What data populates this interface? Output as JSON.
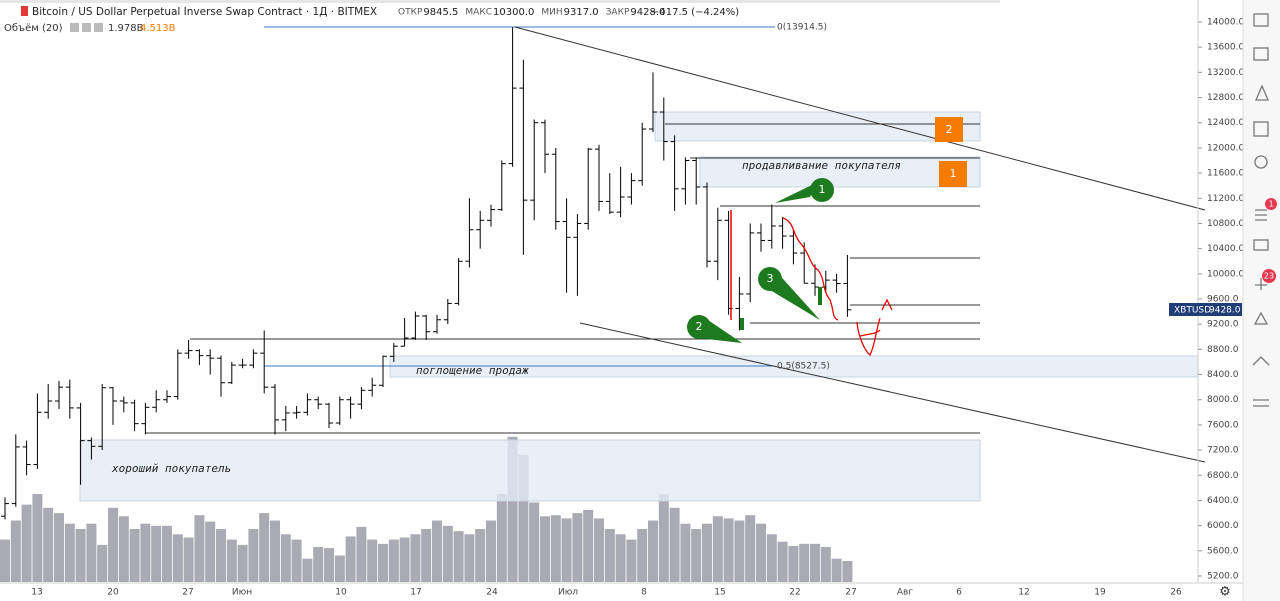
{
  "header": {
    "title": "Bitcoin / US Dollar Perpetual Inverse Swap Contract · 1Д · BITMEX",
    "ohlc": [
      {
        "label": "ОТКР",
        "value": "9845.5"
      },
      {
        "label": "МАКС",
        "value": "10300.0"
      },
      {
        "label": "МИН",
        "value": "9317.0"
      },
      {
        "label": "ЗАКР",
        "value": "9428.0"
      }
    ],
    "change": "−417.5 (−4.24%)",
    "volume_label": "Объём (20)",
    "volume_value": "1.978B",
    "volume_ma": "4.513B"
  },
  "price_tag": {
    "symbol": "XBTUSD",
    "value": "9428.0"
  },
  "annotations": {
    "fib_top": "0(13914.5)",
    "fib_mid": "0.5(8527.5)",
    "zone_seller": "продавливание покупателя",
    "zone_absorb": "поглощение продаж",
    "zone_buyer": "хороший покупатель",
    "box_1": "1",
    "box_2": "2",
    "marker_1": "1",
    "marker_2": "2",
    "marker_3": "3"
  },
  "toolbar": {
    "badge_alerts": "1",
    "badge_ideas": "23"
  },
  "chart_data": {
    "type": "ohlc",
    "x_labels": [
      "13",
      "20",
      "27",
      "Июн",
      "10",
      "17",
      "24",
      "Июл",
      "8",
      "15",
      "22",
      "27",
      "Авг",
      "6",
      "12",
      "19",
      "26"
    ],
    "ylim": [
      5200,
      14000
    ],
    "yticks": [
      {
        "value": 14000,
        "label": "14000.0"
      },
      {
        "value": 13600,
        "label": "13600.0"
      },
      {
        "value": 13200,
        "label": "13200.0"
      },
      {
        "value": 12800,
        "label": "12800.0"
      },
      {
        "value": 12400,
        "label": "12400.0"
      },
      {
        "value": 12000,
        "label": "12000.0"
      },
      {
        "value": 11600,
        "label": "11600.0"
      },
      {
        "value": 11200,
        "label": "11200.0"
      },
      {
        "value": 10800,
        "label": "10800.0"
      },
      {
        "value": 10400,
        "label": "10400.0"
      },
      {
        "value": 10000,
        "label": "10000.0"
      },
      {
        "value": 9600,
        "label": "9600.0"
      },
      {
        "value": 9200,
        "label": "9200.0"
      },
      {
        "value": 8800,
        "label": "8800.0"
      },
      {
        "value": 8400,
        "label": "8400.0"
      },
      {
        "value": 8000,
        "label": "8000.0"
      },
      {
        "value": 7600,
        "label": "7600.0"
      },
      {
        "value": 7200,
        "label": "7200.0"
      },
      {
        "value": 6800,
        "label": "6800.0"
      },
      {
        "value": 6400,
        "label": "6400.0"
      },
      {
        "value": 6000,
        "label": "6000.0"
      },
      {
        "value": 5600,
        "label": "5600.0"
      },
      {
        "value": 5200,
        "label": "5200.0"
      }
    ],
    "bars": [
      [
        6150,
        6450,
        6100,
        6350
      ],
      [
        6350,
        7450,
        6300,
        7250
      ],
      [
        7250,
        7350,
        6800,
        6970
      ],
      [
        6970,
        8100,
        6900,
        7800
      ],
      [
        7800,
        8250,
        7700,
        7980
      ],
      [
        7980,
        8300,
        7850,
        8200
      ],
      [
        8200,
        8320,
        7700,
        7870
      ],
      [
        7870,
        7950,
        6650,
        7350
      ],
      [
        7350,
        7400,
        7050,
        7260
      ],
      [
        7260,
        8250,
        7200,
        8190
      ],
      [
        8190,
        8200,
        7600,
        7980
      ],
      [
        7980,
        8050,
        7800,
        7950
      ],
      [
        7950,
        8000,
        7500,
        7620
      ],
      [
        7620,
        7950,
        7450,
        7880
      ],
      [
        7880,
        8150,
        7800,
        8000
      ],
      [
        8000,
        8150,
        7950,
        8050
      ],
      [
        8050,
        8800,
        8000,
        8740
      ],
      [
        8740,
        8950,
        8650,
        8780
      ],
      [
        8780,
        8800,
        8550,
        8700
      ],
      [
        8700,
        8800,
        8400,
        8660
      ],
      [
        8660,
        8700,
        8050,
        8270
      ],
      [
        8270,
        8600,
        8250,
        8550
      ],
      [
        8550,
        8650,
        8500,
        8550
      ],
      [
        8550,
        8800,
        8500,
        8740
      ],
      [
        8740,
        9100,
        8100,
        8200
      ],
      [
        8200,
        8250,
        7450,
        7680
      ],
      [
        7680,
        7900,
        7500,
        7790
      ],
      [
        7790,
        7900,
        7700,
        7800
      ],
      [
        7800,
        8100,
        7750,
        8000
      ],
      [
        8000,
        8050,
        7850,
        7930
      ],
      [
        7930,
        7950,
        7550,
        7630
      ],
      [
        7630,
        8050,
        7600,
        8000
      ],
      [
        8000,
        8050,
        7700,
        7930
      ],
      [
        7930,
        8200,
        7850,
        8150
      ],
      [
        8150,
        8350,
        8050,
        8230
      ],
      [
        8230,
        8700,
        8200,
        8690
      ],
      [
        8690,
        8900,
        8600,
        8850
      ],
      [
        8850,
        9300,
        8850,
        8980
      ],
      [
        8980,
        9400,
        8950,
        9330
      ],
      [
        9330,
        9350,
        8950,
        9080
      ],
      [
        9080,
        9350,
        9050,
        9270
      ],
      [
        9270,
        9600,
        9200,
        9530
      ],
      [
        9530,
        10250,
        9500,
        10200
      ],
      [
        10200,
        11200,
        10100,
        10700
      ],
      [
        10700,
        11000,
        10400,
        10850
      ],
      [
        10850,
        11100,
        10750,
        11020
      ],
      [
        11020,
        11800,
        11000,
        11750
      ],
      [
        11750,
        13914.5,
        11700,
        12950
      ],
      [
        12950,
        13400,
        10300,
        11170
      ],
      [
        11170,
        12450,
        10850,
        12400
      ],
      [
        12400,
        12450,
        11600,
        11900
      ],
      [
        11900,
        12000,
        10700,
        10830
      ],
      [
        10830,
        11200,
        9700,
        10580
      ],
      [
        10580,
        10950,
        9650,
        10800
      ],
      [
        10800,
        12000,
        10700,
        11980
      ],
      [
        11980,
        12050,
        11000,
        11150
      ],
      [
        11150,
        11600,
        10950,
        10980
      ],
      [
        10980,
        11700,
        10900,
        11220
      ],
      [
        11220,
        11600,
        11100,
        11480
      ],
      [
        11480,
        12400,
        11400,
        12300
      ],
      [
        12300,
        13200,
        12250,
        12570
      ],
      [
        12570,
        12800,
        11800,
        12100
      ],
      [
        12100,
        12200,
        11000,
        11350
      ],
      [
        11350,
        11850,
        11100,
        11800
      ],
      [
        11800,
        11850,
        11100,
        11380
      ],
      [
        11380,
        11450,
        10100,
        10200
      ],
      [
        10200,
        11050,
        9900,
        10850
      ],
      [
        10850,
        11000,
        9350,
        9450
      ],
      [
        9450,
        9950,
        9100,
        9680
      ],
      [
        9680,
        10800,
        9550,
        10650
      ],
      [
        10650,
        10800,
        10350,
        10530
      ],
      [
        10530,
        11100,
        10400,
        10760
      ],
      [
        10760,
        10900,
        10400,
        10600
      ],
      [
        10600,
        10700,
        10150,
        10330
      ],
      [
        10330,
        10500,
        9850,
        9850
      ],
      [
        9850,
        10150,
        9650,
        9790
      ],
      [
        9790,
        10050,
        9700,
        9900
      ],
      [
        9900,
        10000,
        9700,
        9845.5
      ],
      [
        9845.5,
        10300,
        9317,
        9428
      ]
    ],
    "volumes": [
      4.0,
      5.8,
      7.3,
      8.3,
      7.0,
      6.5,
      5.5,
      5.0,
      5.5,
      3.5,
      7.0,
      6.2,
      5.0,
      5.5,
      5.3,
      5.3,
      4.5,
      4.2,
      6.3,
      5.7,
      5.0,
      4.0,
      3.5,
      5.0,
      6.5,
      5.8,
      4.5,
      4.0,
      2.2,
      3.3,
      3.2,
      2.5,
      4.3,
      5.2,
      4.0,
      3.6,
      4.0,
      4.2,
      4.5,
      5.0,
      5.8,
      5.3,
      4.8,
      4.5,
      5.0,
      5.8,
      8.3,
      13.7,
      12.0,
      7.5,
      6.2,
      6.3,
      6.0,
      6.5,
      6.8,
      6.0,
      5.0,
      4.5,
      4.0,
      5.0,
      5.8,
      8.3,
      7.0,
      5.5,
      5.0,
      5.5,
      6.2,
      6.0,
      5.8,
      6.3,
      5.5,
      4.5,
      3.8,
      3.4,
      3.6,
      3.6,
      3.3,
      2.2,
      1.978
    ],
    "bar_color": "#000000",
    "volume_color": "#a9aab3"
  }
}
